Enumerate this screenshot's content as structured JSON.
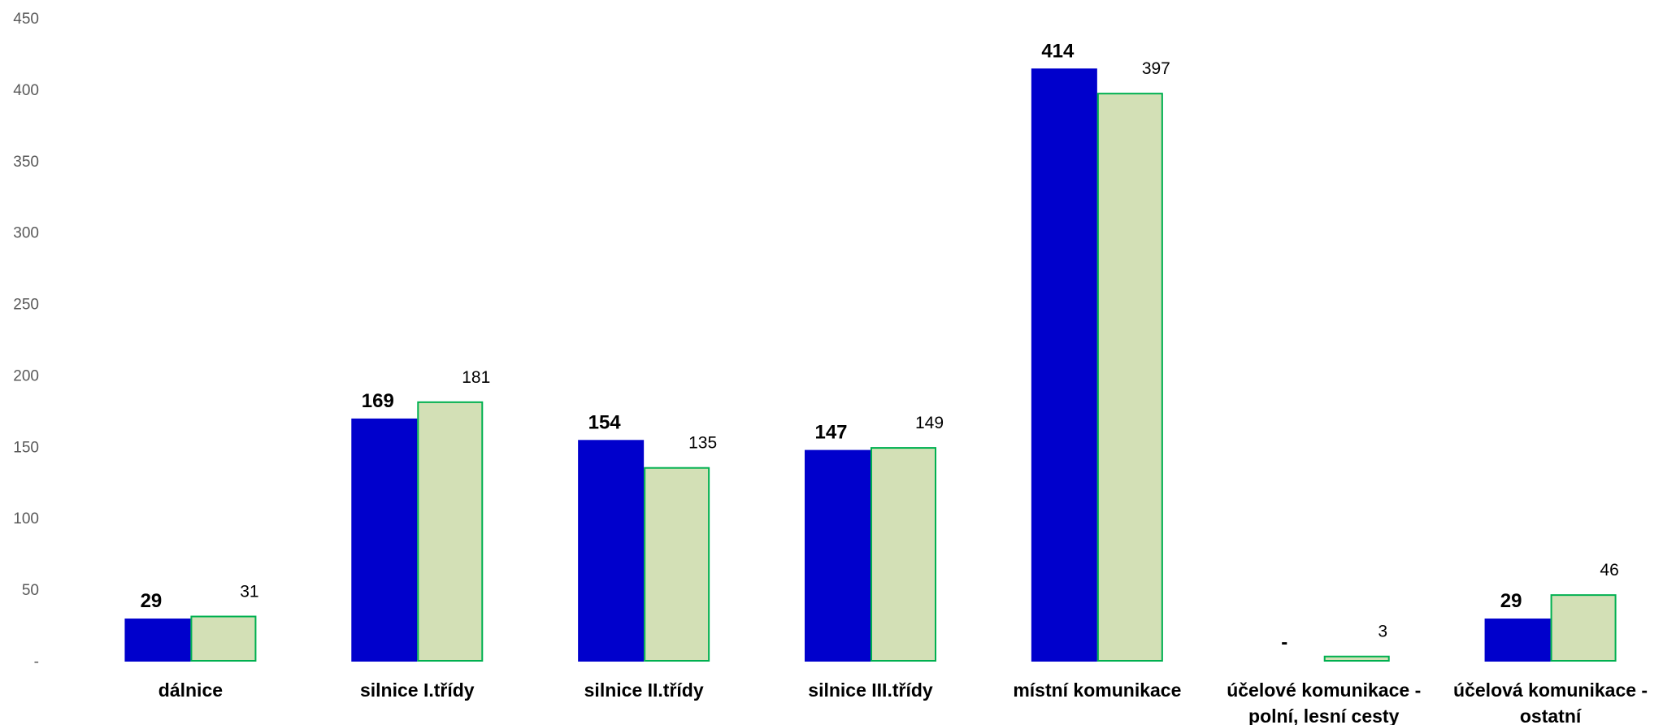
{
  "chart_data": {
    "type": "bar",
    "categories": [
      [
        "dálnice"
      ],
      [
        "silnice I.třídy"
      ],
      [
        "silnice II.třídy"
      ],
      [
        "silnice III.třídy"
      ],
      [
        "místní komunikace"
      ],
      [
        "účelové komunikace -",
        "polní, lesní cesty"
      ],
      [
        "účelová komunikace -",
        "ostatní"
      ]
    ],
    "series": [
      {
        "values": [
          29,
          169,
          154,
          147,
          414,
          0,
          29
        ],
        "labels": [
          "29",
          "169",
          "154",
          "147",
          "414",
          "-",
          "29"
        ],
        "color": "#0000CC",
        "border": "#0000CC",
        "label_style": "bold"
      },
      {
        "values": [
          31,
          181,
          135,
          149,
          397,
          3,
          46
        ],
        "labels": [
          "31",
          "181",
          "135",
          "149",
          "397",
          "3",
          "46"
        ],
        "color": "#D3E0B6",
        "border": "#00B050",
        "label_style": "normal"
      }
    ],
    "yticks": [
      "-",
      "50",
      "100",
      "150",
      "200",
      "250",
      "300",
      "350",
      "400",
      "450"
    ],
    "ylim": [
      0,
      450
    ],
    "grid": false,
    "legend": "none"
  }
}
